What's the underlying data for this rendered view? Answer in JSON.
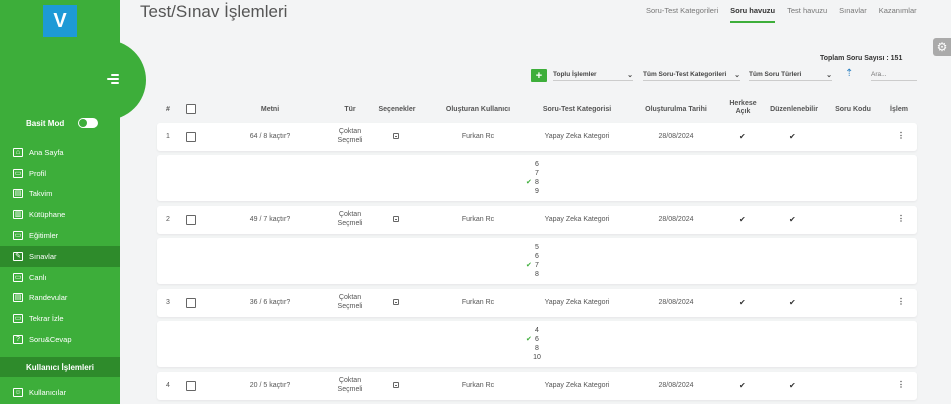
{
  "sidebar": {
    "logo": "V",
    "basic_mode_label": "Basit Mod",
    "items": [
      {
        "label": "Ana Sayfa",
        "icon": "home-icon",
        "glyph": "⌂"
      },
      {
        "label": "Profil",
        "icon": "profile-icon",
        "glyph": "▭"
      },
      {
        "label": "Takvim",
        "icon": "calendar-icon",
        "glyph": "▤"
      },
      {
        "label": "Kütüphane",
        "icon": "library-icon",
        "glyph": "▥"
      },
      {
        "label": "Eğitimler",
        "icon": "education-icon",
        "glyph": "▭"
      },
      {
        "label": "Sınavlar",
        "icon": "exam-icon",
        "glyph": "✎"
      },
      {
        "label": "Canlı",
        "icon": "live-icon",
        "glyph": "▭"
      },
      {
        "label": "Randevular",
        "icon": "appointments-icon",
        "glyph": "▤"
      },
      {
        "label": "Tekrar İzle",
        "icon": "replay-icon",
        "glyph": "▭"
      },
      {
        "label": "Soru&Cevap",
        "icon": "question-icon",
        "glyph": "?"
      }
    ],
    "section_title": "Kullanıcı İşlemleri",
    "users_label": "Kullanıcılar"
  },
  "header": {
    "title": "Test/Sınav İşlemleri",
    "tabs": [
      "Soru-Test Kategorileri",
      "Soru havuzu",
      "Test havuzu",
      "Sınavlar",
      "Kazanımlar"
    ],
    "active_tab": "Soru havuzu"
  },
  "toolbar": {
    "total_label": "Toplam Soru Sayısı : 151",
    "add_label": "+",
    "bulk_actions": "Toplu İşlemler",
    "category_filter": "Tüm Soru-Test Kategorileri",
    "type_filter": "Tüm Soru Türleri",
    "search_placeholder": "Ara..."
  },
  "table": {
    "headers": {
      "num": "#",
      "text": "Metni",
      "type": "Tür",
      "options": "Seçenekler",
      "creator": "Oluşturan Kullanıcı",
      "category": "Soru-Test Kategorisi",
      "date": "Oluşturulma Tarihi",
      "public_line1": "Herkese",
      "public_line2": "Açık",
      "editable": "Düzenlenebilir",
      "code": "Soru Kodu",
      "action": "İşlem"
    },
    "rows": [
      {
        "num": "1",
        "text": "64 / 8 kaçtır?",
        "type_line1": "Çoktan",
        "type_line2": "Seçmeli",
        "creator": "Furkan Rc",
        "category": "Yapay Zeka Kategori",
        "date": "28/08/2024",
        "answers": [
          "6",
          "7",
          "8",
          "9"
        ],
        "correct": 2
      },
      {
        "num": "2",
        "text": "49 / 7 kaçtır?",
        "type_line1": "Çoktan",
        "type_line2": "Seçmeli",
        "creator": "Furkan Rc",
        "category": "Yapay Zeka Kategori",
        "date": "28/08/2024",
        "answers": [
          "5",
          "6",
          "7",
          "8"
        ],
        "correct": 2
      },
      {
        "num": "3",
        "text": "36 / 6 kaçtır?",
        "type_line1": "Çoktan",
        "type_line2": "Seçmeli",
        "creator": "Furkan Rc",
        "category": "Yapay Zeka Kategori",
        "date": "28/08/2024",
        "answers": [
          "4",
          "6",
          "8",
          "10"
        ],
        "correct": 1
      },
      {
        "num": "4",
        "text": "20 / 5 kaçtır?",
        "type_line1": "Çoktan",
        "type_line2": "Seçmeli",
        "creator": "Furkan Rc",
        "category": "Yapay Zeka Kategori",
        "date": "28/08/2024",
        "answers": [],
        "correct": -1
      }
    ]
  },
  "colors": {
    "brand_green": "#3dae3a",
    "sidebar_active": "#2e8b2b",
    "logo_blue": "#1d9ad6"
  }
}
